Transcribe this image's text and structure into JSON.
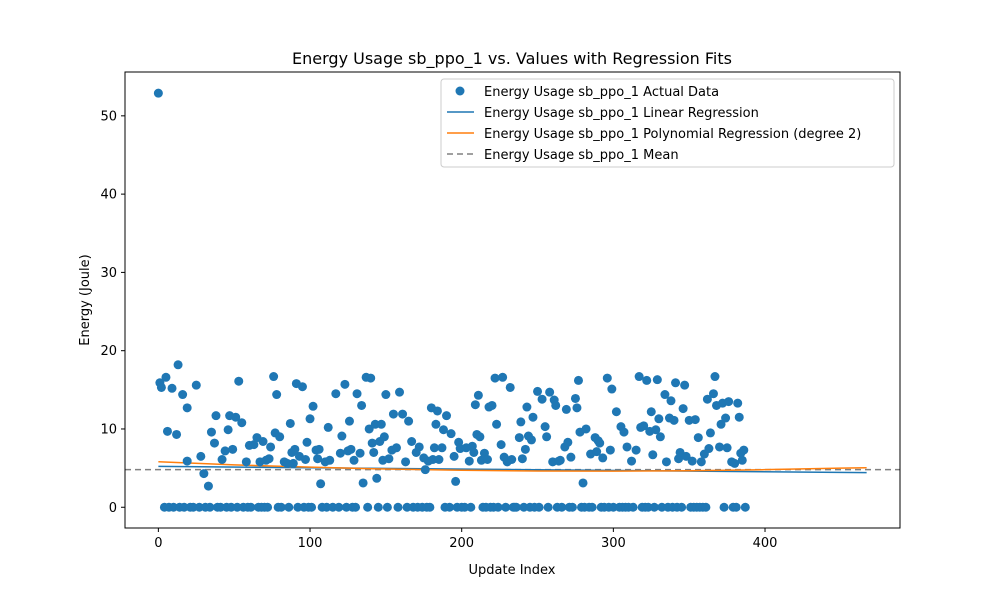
{
  "chart_data": {
    "type": "scatter",
    "title": "Energy Usage sb_ppo_1 vs. Values with Regression Fits",
    "xlabel": "Update Index",
    "ylabel": "Energy (Joule)",
    "xlim": [
      -22,
      489
    ],
    "ylim": [
      -2.65,
      55.6
    ],
    "xticks": [
      0,
      100,
      200,
      300,
      400
    ],
    "yticks": [
      0,
      10,
      20,
      30,
      40,
      50
    ],
    "grid": false,
    "legend_position": "top-right",
    "colors": {
      "points": "#1f77b4",
      "linear": "#1f77b4",
      "poly": "#ff7f0e",
      "mean": "#808080"
    },
    "legend": [
      {
        "key": "actual",
        "label": "Energy Usage sb_ppo_1 Actual Data"
      },
      {
        "key": "linear",
        "label": "Energy Usage sb_ppo_1 Linear Regression"
      },
      {
        "key": "poly",
        "label": "Energy Usage sb_ppo_1 Polynomial Regression (degree 2)"
      },
      {
        "key": "mean",
        "label": "Energy Usage sb_ppo_1 Mean"
      }
    ],
    "points": [
      [
        0,
        52.9
      ],
      [
        1,
        15.9
      ],
      [
        2,
        15.3
      ],
      [
        4,
        0
      ],
      [
        5,
        16.6
      ],
      [
        6,
        9.7
      ],
      [
        7,
        0
      ],
      [
        9,
        15.2
      ],
      [
        10,
        0
      ],
      [
        12,
        9.3
      ],
      [
        13,
        18.2
      ],
      [
        14,
        0
      ],
      [
        16,
        14.4
      ],
      [
        17,
        0
      ],
      [
        19,
        12.7
      ],
      [
        19,
        5.9
      ],
      [
        21,
        0
      ],
      [
        23,
        0
      ],
      [
        25,
        15.6
      ],
      [
        27,
        0
      ],
      [
        28,
        6.5
      ],
      [
        30,
        4.3
      ],
      [
        31,
        0
      ],
      [
        33,
        2.7
      ],
      [
        34,
        0
      ],
      [
        35,
        9.6
      ],
      [
        37,
        8.2
      ],
      [
        38,
        11.7
      ],
      [
        39,
        0
      ],
      [
        41,
        0
      ],
      [
        42,
        6.1
      ],
      [
        44,
        7.2
      ],
      [
        45,
        0
      ],
      [
        46,
        9.9
      ],
      [
        47,
        11.7
      ],
      [
        48,
        0
      ],
      [
        49,
        7.4
      ],
      [
        51,
        11.5
      ],
      [
        52,
        0
      ],
      [
        53,
        16.1
      ],
      [
        55,
        10.8
      ],
      [
        56,
        0
      ],
      [
        58,
        5.8
      ],
      [
        59,
        0
      ],
      [
        60,
        7.9
      ],
      [
        61,
        0
      ],
      [
        63,
        8.0
      ],
      [
        65,
        8.9
      ],
      [
        66,
        0
      ],
      [
        67,
        5.8
      ],
      [
        68,
        0
      ],
      [
        69,
        8.4
      ],
      [
        70,
        0
      ],
      [
        71,
        6.0
      ],
      [
        72,
        0
      ],
      [
        73,
        6.2
      ],
      [
        74,
        7.7
      ],
      [
        76,
        16.7
      ],
      [
        77,
        9.5
      ],
      [
        78,
        14.4
      ],
      [
        79,
        0
      ],
      [
        80,
        9.0
      ],
      [
        81,
        0
      ],
      [
        83,
        5.8
      ],
      [
        85,
        5.6
      ],
      [
        86,
        0
      ],
      [
        87,
        10.7
      ],
      [
        88,
        7.0
      ],
      [
        89,
        5.6
      ],
      [
        90,
        7.4
      ],
      [
        91,
        15.8
      ],
      [
        92,
        0
      ],
      [
        93,
        6.5
      ],
      [
        95,
        15.4
      ],
      [
        96,
        0
      ],
      [
        97,
        6.1
      ],
      [
        98,
        8.3
      ],
      [
        99,
        0
      ],
      [
        100,
        11.3
      ],
      [
        101,
        0
      ],
      [
        102,
        12.9
      ],
      [
        104,
        7.3
      ],
      [
        105,
        6.2
      ],
      [
        106,
        7.4
      ],
      [
        107,
        3.0
      ],
      [
        108,
        0
      ],
      [
        110,
        5.8
      ],
      [
        111,
        0
      ],
      [
        112,
        10.2
      ],
      [
        113,
        6.0
      ],
      [
        115,
        0
      ],
      [
        117,
        14.5
      ],
      [
        119,
        0
      ],
      [
        120,
        6.9
      ],
      [
        121,
        9.1
      ],
      [
        123,
        15.7
      ],
      [
        124,
        0
      ],
      [
        125,
        7.2
      ],
      [
        126,
        11.0
      ],
      [
        127,
        7.4
      ],
      [
        128,
        0
      ],
      [
        129,
        6.0
      ],
      [
        130,
        0
      ],
      [
        131,
        14.5
      ],
      [
        133,
        6.9
      ],
      [
        134,
        13.0
      ],
      [
        135,
        3.1
      ],
      [
        137,
        16.6
      ],
      [
        138,
        0
      ],
      [
        139,
        10.0
      ],
      [
        140,
        16.5
      ],
      [
        141,
        8.2
      ],
      [
        142,
        7.0
      ],
      [
        143,
        10.6
      ],
      [
        144,
        3.7
      ],
      [
        145,
        0
      ],
      [
        146,
        8.4
      ],
      [
        147,
        10.6
      ],
      [
        148,
        6.0
      ],
      [
        149,
        9.0
      ],
      [
        150,
        14.4
      ],
      [
        151,
        0
      ],
      [
        152,
        6.2
      ],
      [
        154,
        7.3
      ],
      [
        155,
        11.9
      ],
      [
        157,
        7.6
      ],
      [
        158,
        0
      ],
      [
        159,
        14.7
      ],
      [
        161,
        11.9
      ],
      [
        163,
        5.8
      ],
      [
        164,
        0
      ],
      [
        165,
        11.0
      ],
      [
        167,
        8.4
      ],
      [
        168,
        0
      ],
      [
        170,
        7.0
      ],
      [
        171,
        0
      ],
      [
        172,
        7.7
      ],
      [
        174,
        0
      ],
      [
        175,
        6.3
      ],
      [
        176,
        4.8
      ],
      [
        177,
        0
      ],
      [
        178,
        5.9
      ],
      [
        179,
        0
      ],
      [
        180,
        12.7
      ],
      [
        181,
        6.1
      ],
      [
        182,
        7.6
      ],
      [
        183,
        10.6
      ],
      [
        184,
        12.3
      ],
      [
        185,
        6.1
      ],
      [
        187,
        7.6
      ],
      [
        188,
        9.9
      ],
      [
        189,
        0
      ],
      [
        190,
        11.7
      ],
      [
        192,
        0
      ],
      [
        193,
        9.4
      ],
      [
        195,
        6.5
      ],
      [
        196,
        3.3
      ],
      [
        197,
        0
      ],
      [
        198,
        8.3
      ],
      [
        199,
        7.5
      ],
      [
        200,
        0
      ],
      [
        202,
        0
      ],
      [
        203,
        7.6
      ],
      [
        205,
        5.9
      ],
      [
        206,
        0
      ],
      [
        207,
        7.8
      ],
      [
        208,
        7.0
      ],
      [
        209,
        13.1
      ],
      [
        210,
        9.3
      ],
      [
        211,
        14.3
      ],
      [
        212,
        9.0
      ],
      [
        213,
        6.0
      ],
      [
        214,
        0
      ],
      [
        215,
        6.9
      ],
      [
        216,
        0
      ],
      [
        217,
        6.1
      ],
      [
        218,
        12.8
      ],
      [
        219,
        0
      ],
      [
        220,
        13.0
      ],
      [
        221,
        0
      ],
      [
        222,
        16.5
      ],
      [
        223,
        10.6
      ],
      [
        224,
        0
      ],
      [
        226,
        8.0
      ],
      [
        227,
        16.6
      ],
      [
        228,
        6.4
      ],
      [
        229,
        0
      ],
      [
        230,
        5.8
      ],
      [
        232,
        15.3
      ],
      [
        233,
        6.1
      ],
      [
        234,
        0
      ],
      [
        235,
        0
      ],
      [
        236,
        0
      ],
      [
        238,
        8.9
      ],
      [
        239,
        10.9
      ],
      [
        240,
        6.2
      ],
      [
        241,
        0
      ],
      [
        242,
        7.4
      ],
      [
        243,
        12.8
      ],
      [
        244,
        9.1
      ],
      [
        245,
        0
      ],
      [
        246,
        8.6
      ],
      [
        247,
        11.5
      ],
      [
        248,
        0
      ],
      [
        250,
        14.8
      ],
      [
        251,
        0
      ],
      [
        253,
        13.8
      ],
      [
        255,
        10.3
      ],
      [
        256,
        9.0
      ],
      [
        257,
        0
      ],
      [
        258,
        14.7
      ],
      [
        260,
        5.8
      ],
      [
        261,
        13.7
      ],
      [
        262,
        13.0
      ],
      [
        263,
        0
      ],
      [
        264,
        5.9
      ],
      [
        265,
        6.0
      ],
      [
        266,
        0
      ],
      [
        268,
        7.7
      ],
      [
        269,
        12.5
      ],
      [
        270,
        8.3
      ],
      [
        271,
        0
      ],
      [
        272,
        6.4
      ],
      [
        273,
        0
      ],
      [
        275,
        13.9
      ],
      [
        276,
        12.7
      ],
      [
        277,
        16.2
      ],
      [
        278,
        9.6
      ],
      [
        279,
        0
      ],
      [
        280,
        3.1
      ],
      [
        281,
        0
      ],
      [
        282,
        10.0
      ],
      [
        284,
        0
      ],
      [
        285,
        6.8
      ],
      [
        286,
        0
      ],
      [
        288,
        8.9
      ],
      [
        289,
        7.1
      ],
      [
        290,
        8.5
      ],
      [
        291,
        8.2
      ],
      [
        292,
        0
      ],
      [
        293,
        6.3
      ],
      [
        294,
        0
      ],
      [
        296,
        16.5
      ],
      [
        297,
        0
      ],
      [
        298,
        7.3
      ],
      [
        299,
        15.1
      ],
      [
        300,
        0
      ],
      [
        302,
        12.2
      ],
      [
        304,
        0
      ],
      [
        305,
        10.3
      ],
      [
        306,
        0
      ],
      [
        307,
        9.6
      ],
      [
        308,
        0
      ],
      [
        309,
        7.7
      ],
      [
        310,
        0
      ],
      [
        312,
        5.9
      ],
      [
        313,
        0
      ],
      [
        315,
        7.3
      ],
      [
        317,
        16.7
      ],
      [
        318,
        10.2
      ],
      [
        319,
        0
      ],
      [
        320,
        10.4
      ],
      [
        321,
        0
      ],
      [
        322,
        16.2
      ],
      [
        323,
        0
      ],
      [
        324,
        9.7
      ],
      [
        325,
        12.2
      ],
      [
        326,
        6.7
      ],
      [
        327,
        0
      ],
      [
        328,
        9.9
      ],
      [
        329,
        16.3
      ],
      [
        330,
        11.3
      ],
      [
        331,
        9.0
      ],
      [
        332,
        0
      ],
      [
        334,
        14.4
      ],
      [
        335,
        5.8
      ],
      [
        336,
        0
      ],
      [
        337,
        11.4
      ],
      [
        338,
        13.6
      ],
      [
        339,
        0
      ],
      [
        340,
        11.1
      ],
      [
        341,
        15.9
      ],
      [
        342,
        0
      ],
      [
        343,
        6.2
      ],
      [
        344,
        7.0
      ],
      [
        345,
        0
      ],
      [
        346,
        12.6
      ],
      [
        347,
        15.6
      ],
      [
        348,
        6.5
      ],
      [
        350,
        11.1
      ],
      [
        351,
        0
      ],
      [
        352,
        5.9
      ],
      [
        353,
        0
      ],
      [
        354,
        11.2
      ],
      [
        355,
        0
      ],
      [
        356,
        8.9
      ],
      [
        357,
        0
      ],
      [
        358,
        5.8
      ],
      [
        359,
        0
      ],
      [
        360,
        6.8
      ],
      [
        361,
        0
      ],
      [
        362,
        13.8
      ],
      [
        363,
        7.5
      ],
      [
        364,
        9.5
      ],
      [
        366,
        14.5
      ],
      [
        367,
        16.7
      ],
      [
        368,
        13.0
      ],
      [
        370,
        7.7
      ],
      [
        371,
        10.6
      ],
      [
        372,
        13.3
      ],
      [
        373,
        0
      ],
      [
        374,
        11.4
      ],
      [
        375,
        7.6
      ],
      [
        376,
        13.5
      ],
      [
        378,
        5.8
      ],
      [
        379,
        0
      ],
      [
        380,
        5.6
      ],
      [
        381,
        0
      ],
      [
        382,
        13.3
      ],
      [
        383,
        11.5
      ],
      [
        384,
        6.9
      ],
      [
        385,
        6.0
      ],
      [
        386,
        7.3
      ],
      [
        387,
        0
      ]
    ],
    "linear_regression": {
      "x": [
        0,
        467
      ],
      "y": [
        5.22,
        4.42
      ]
    },
    "polynomial_regression": {
      "x": [
        0,
        50,
        100,
        150,
        200,
        250,
        300,
        350,
        400,
        450,
        467
      ],
      "y": [
        5.82,
        5.42,
        5.12,
        4.88,
        4.72,
        4.63,
        4.62,
        4.67,
        4.8,
        5.0,
        5.05
      ]
    },
    "mean": 4.8
  }
}
